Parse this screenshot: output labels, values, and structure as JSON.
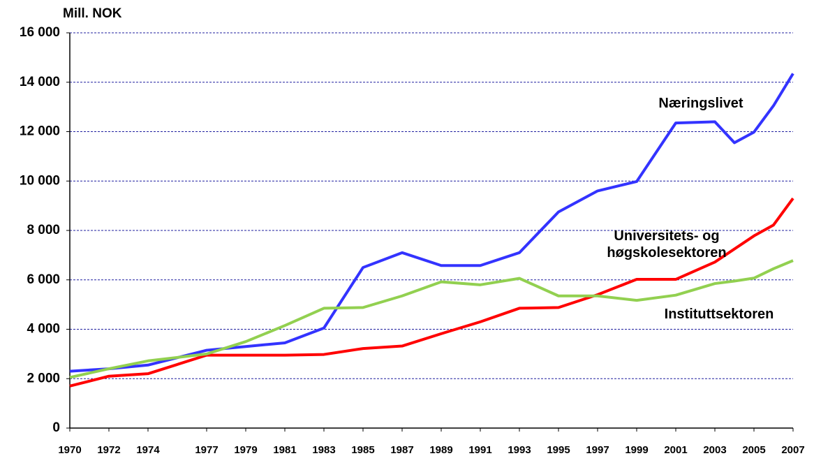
{
  "chart_data": {
    "type": "line",
    "y_axis_label": "Mill. NOK",
    "x": [
      1970,
      1972,
      1974,
      1977,
      1979,
      1981,
      1983,
      1985,
      1987,
      1989,
      1991,
      1993,
      1995,
      1997,
      1999,
      2001,
      2003,
      2004,
      2005,
      2006,
      2007
    ],
    "series": [
      {
        "name": "Næringslivet",
        "color": "#3333ff",
        "values": [
          2300,
          2400,
          2550,
          3150,
          3300,
          3450,
          4050,
          6500,
          7100,
          6580,
          6580,
          7100,
          8750,
          9600,
          9980,
          12350,
          12400,
          11550,
          11980,
          13050,
          14350
        ]
      },
      {
        "name": "Universitets- og høgskolesektoren",
        "color": "#ff0000",
        "values": [
          1700,
          2100,
          2200,
          2950,
          2950,
          2950,
          2980,
          3220,
          3320,
          3820,
          4300,
          4850,
          4880,
          5400,
          6020,
          6020,
          6720,
          7250,
          7780,
          8220,
          9300
        ]
      },
      {
        "name": "Instituttsektoren",
        "color": "#92d050",
        "values": [
          2050,
          2400,
          2720,
          3000,
          3500,
          4150,
          4850,
          4880,
          5350,
          5920,
          5800,
          6060,
          5350,
          5350,
          5170,
          5380,
          5850,
          5950,
          6070,
          6450,
          6780
        ]
      }
    ],
    "xlim": [
      1970,
      2007
    ],
    "xticks": [
      1970,
      1972,
      1974,
      1977,
      1979,
      1981,
      1983,
      1985,
      1987,
      1989,
      1991,
      1993,
      1995,
      1997,
      1999,
      2001,
      2003,
      2005,
      2007
    ],
    "ylim": [
      0,
      16000
    ],
    "yticks": [
      0,
      {
        "value": 2000,
        "label": "2 000"
      },
      {
        "value": 4000,
        "label": "4 000"
      },
      {
        "value": 6000,
        "label": "6 000"
      },
      {
        "value": 8000,
        "label": "8 000"
      },
      {
        "value": 10000,
        "label": "10 000"
      },
      {
        "value": 12000,
        "label": "12 000"
      },
      {
        "value": 14000,
        "label": "14 000"
      },
      {
        "value": 16000,
        "label": "16 000"
      }
    ],
    "grid": true
  }
}
